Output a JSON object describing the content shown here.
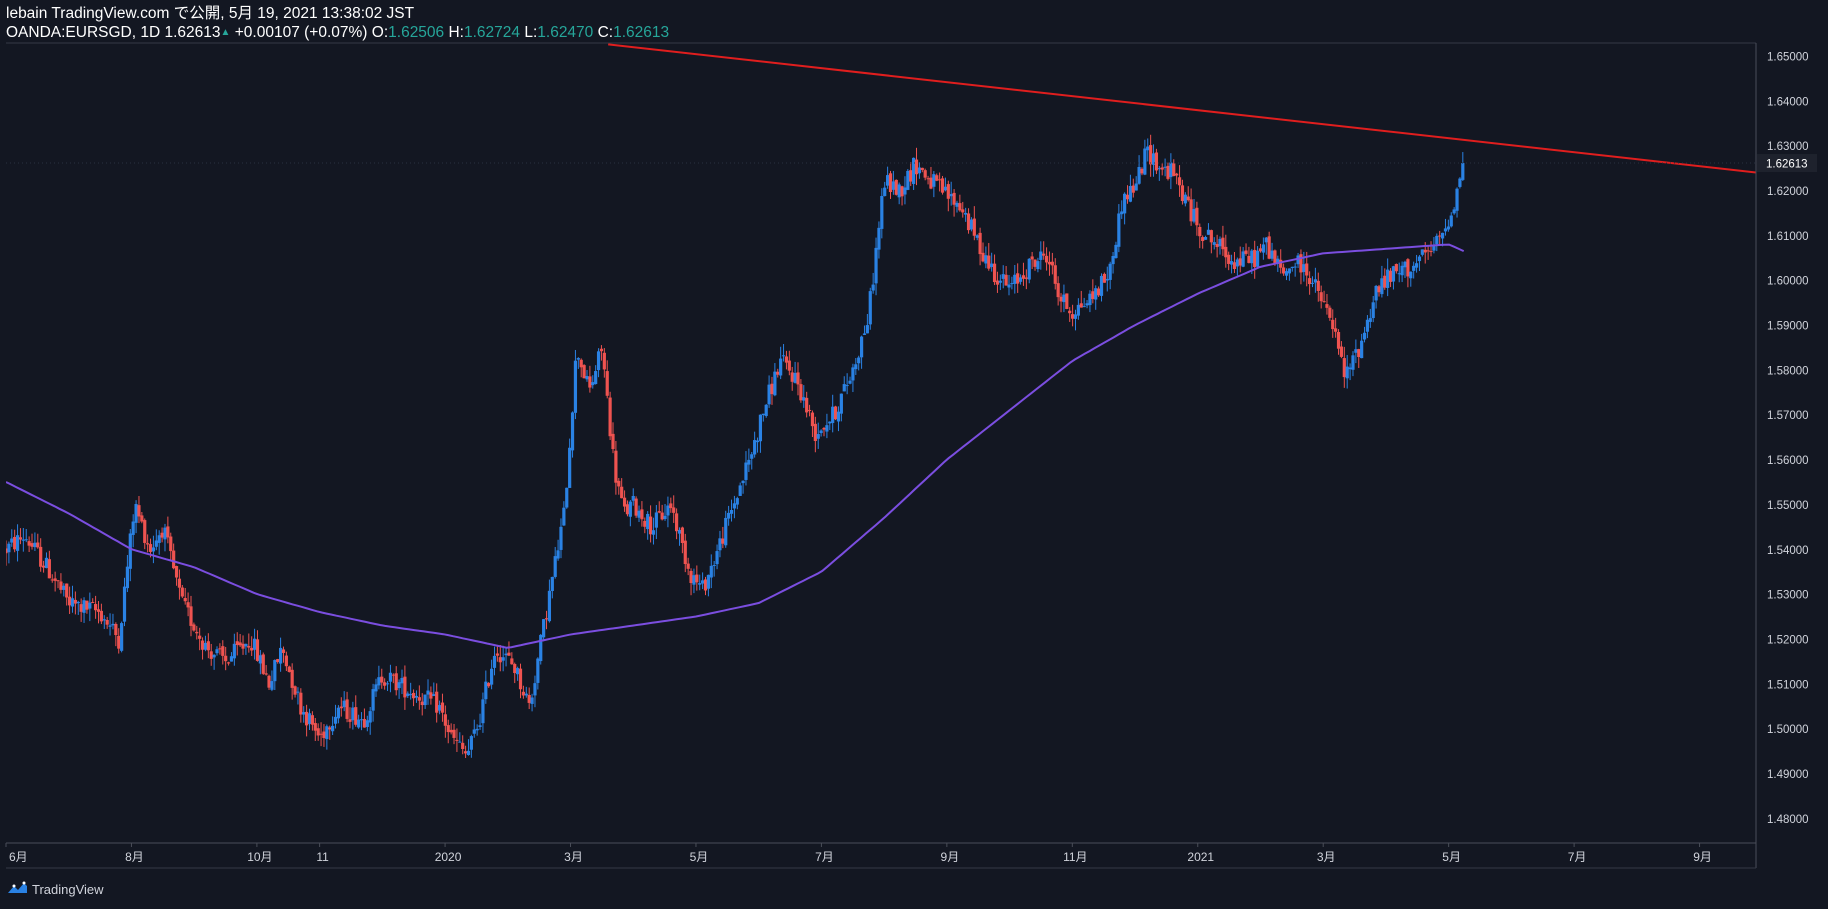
{
  "header": {
    "publish_line": "lebain TradingView.com で公開, 5月 19, 2021 13:38:02 JST",
    "symbol": "OANDA:EURSGD, 1D",
    "last": "1.62613",
    "change_arrow": "▲",
    "change": "+0.00107 (+0.07%)",
    "o_label": "O:",
    "o_value": "1.62506",
    "h_label": "H:",
    "h_value": "1.62724",
    "l_label": "L:",
    "l_value": "1.62470",
    "c_label": "C:",
    "c_value": "1.62613"
  },
  "footer": {
    "brand": "TradingView",
    "logo_icon": "tradingview-logo-icon"
  },
  "colors": {
    "background": "#131722",
    "up_candle": "#2a82e4",
    "down_candle": "#ef5350",
    "ma_line": "#7b4ee0",
    "trendline": "#e01e1e",
    "axis_text": "#d1d4dc",
    "price_tag": "#1e222d",
    "header_green": "#26a69a"
  },
  "chart_data": {
    "type": "candlestick",
    "symbol": "OANDA:EURSGD",
    "interval": "1D",
    "y_ticks": [
      "1.65000",
      "1.64000",
      "1.63000",
      "1.62000",
      "1.61000",
      "1.60000",
      "1.59000",
      "1.58000",
      "1.57000",
      "1.56000",
      "1.55000",
      "1.54000",
      "1.53000",
      "1.52000",
      "1.51000",
      "1.50000",
      "1.49000",
      "1.48000"
    ],
    "ylim": [
      1.4745,
      1.6529
    ],
    "x_tick_labels": [
      "6月",
      "8月",
      "10月",
      "11",
      "2020",
      "3月",
      "5月",
      "7月",
      "9月",
      "11月",
      "2021",
      "3月",
      "5月",
      "7月",
      "9月"
    ],
    "x_ticks_month_index": [
      0,
      2,
      4,
      5,
      7,
      9,
      11,
      13,
      15,
      17,
      19,
      21,
      23,
      25,
      27
    ],
    "last_price_label": "1.62613",
    "last_price": 1.62613,
    "price_anchors": [
      [
        0,
        1.54
      ],
      [
        0.3,
        1.543
      ],
      [
        0.7,
        1.535
      ],
      [
        1.0,
        1.528
      ],
      [
        1.5,
        1.526
      ],
      [
        1.8,
        1.52
      ],
      [
        2.05,
        1.55
      ],
      [
        2.3,
        1.54
      ],
      [
        2.5,
        1.545
      ],
      [
        2.8,
        1.528
      ],
      [
        3.2,
        1.518
      ],
      [
        3.5,
        1.515
      ],
      [
        3.9,
        1.52
      ],
      [
        4.2,
        1.51
      ],
      [
        4.4,
        1.518
      ],
      [
        4.7,
        1.505
      ],
      [
        5.0,
        1.498
      ],
      [
        5.3,
        1.505
      ],
      [
        5.7,
        1.502
      ],
      [
        6.0,
        1.512
      ],
      [
        6.5,
        1.508
      ],
      [
        6.9,
        1.505
      ],
      [
        7.1,
        1.498
      ],
      [
        7.35,
        1.494
      ],
      [
        7.55,
        1.502
      ],
      [
        7.8,
        1.518
      ],
      [
        8.1,
        1.514
      ],
      [
        8.35,
        1.505
      ],
      [
        8.6,
        1.525
      ],
      [
        8.9,
        1.548
      ],
      [
        9.1,
        1.585
      ],
      [
        9.3,
        1.575
      ],
      [
        9.5,
        1.585
      ],
      [
        9.7,
        1.558
      ],
      [
        9.85,
        1.548
      ],
      [
        10.0,
        1.55
      ],
      [
        10.3,
        1.545
      ],
      [
        10.6,
        1.55
      ],
      [
        10.9,
        1.535
      ],
      [
        11.1,
        1.531
      ],
      [
        11.3,
        1.538
      ],
      [
        11.6,
        1.55
      ],
      [
        11.9,
        1.562
      ],
      [
        12.1,
        1.572
      ],
      [
        12.35,
        1.582
      ],
      [
        12.6,
        1.578
      ],
      [
        12.9,
        1.566
      ],
      [
        13.2,
        1.57
      ],
      [
        13.5,
        1.58
      ],
      [
        13.75,
        1.592
      ],
      [
        14.0,
        1.622
      ],
      [
        14.25,
        1.62
      ],
      [
        14.5,
        1.626
      ],
      [
        14.75,
        1.622
      ],
      [
        15.0,
        1.619
      ],
      [
        15.25,
        1.616
      ],
      [
        15.5,
        1.608
      ],
      [
        15.75,
        1.602
      ],
      [
        16.0,
        1.598
      ],
      [
        16.3,
        1.603
      ],
      [
        16.6,
        1.606
      ],
      [
        16.8,
        1.596
      ],
      [
        17.0,
        1.593
      ],
      [
        17.3,
        1.596
      ],
      [
        17.6,
        1.602
      ],
      [
        17.8,
        1.618
      ],
      [
        18.0,
        1.621
      ],
      [
        18.2,
        1.629
      ],
      [
        18.4,
        1.625
      ],
      [
        18.6,
        1.624
      ],
      [
        18.8,
        1.618
      ],
      [
        19.0,
        1.612
      ],
      [
        19.3,
        1.608
      ],
      [
        19.6,
        1.604
      ],
      [
        19.9,
        1.605
      ],
      [
        20.1,
        1.608
      ],
      [
        20.35,
        1.601
      ],
      [
        20.55,
        1.604
      ],
      [
        20.75,
        1.602
      ],
      [
        20.95,
        1.596
      ],
      [
        21.15,
        1.59
      ],
      [
        21.35,
        1.578
      ],
      [
        21.6,
        1.586
      ],
      [
        21.85,
        1.598
      ],
      [
        22.1,
        1.601
      ],
      [
        22.4,
        1.603
      ],
      [
        22.7,
        1.606
      ],
      [
        22.9,
        1.61
      ],
      [
        23.1,
        1.618
      ],
      [
        23.24,
        1.62613
      ]
    ],
    "ma_anchors": [
      [
        0,
        1.555
      ],
      [
        1.0,
        1.548
      ],
      [
        2.0,
        1.54
      ],
      [
        3.0,
        1.536
      ],
      [
        4.0,
        1.53
      ],
      [
        5.0,
        1.526
      ],
      [
        6.0,
        1.523
      ],
      [
        7.0,
        1.521
      ],
      [
        8.0,
        1.518
      ],
      [
        9.0,
        1.521
      ],
      [
        10.0,
        1.523
      ],
      [
        11.0,
        1.525
      ],
      [
        12.0,
        1.528
      ],
      [
        13.0,
        1.535
      ],
      [
        14.0,
        1.547
      ],
      [
        15.0,
        1.56
      ],
      [
        16.0,
        1.571
      ],
      [
        17.0,
        1.582
      ],
      [
        18.0,
        1.59
      ],
      [
        19.0,
        1.597
      ],
      [
        20.0,
        1.603
      ],
      [
        21.0,
        1.606
      ],
      [
        22.0,
        1.607
      ],
      [
        23.0,
        1.608
      ],
      [
        23.24,
        1.6065
      ]
    ],
    "trendline": {
      "x0": 9.6,
      "y0": 1.6526,
      "x1": 29.0,
      "y1": 1.6223
    },
    "x_range_months": [
      0,
      27.9
    ],
    "grid": false
  }
}
